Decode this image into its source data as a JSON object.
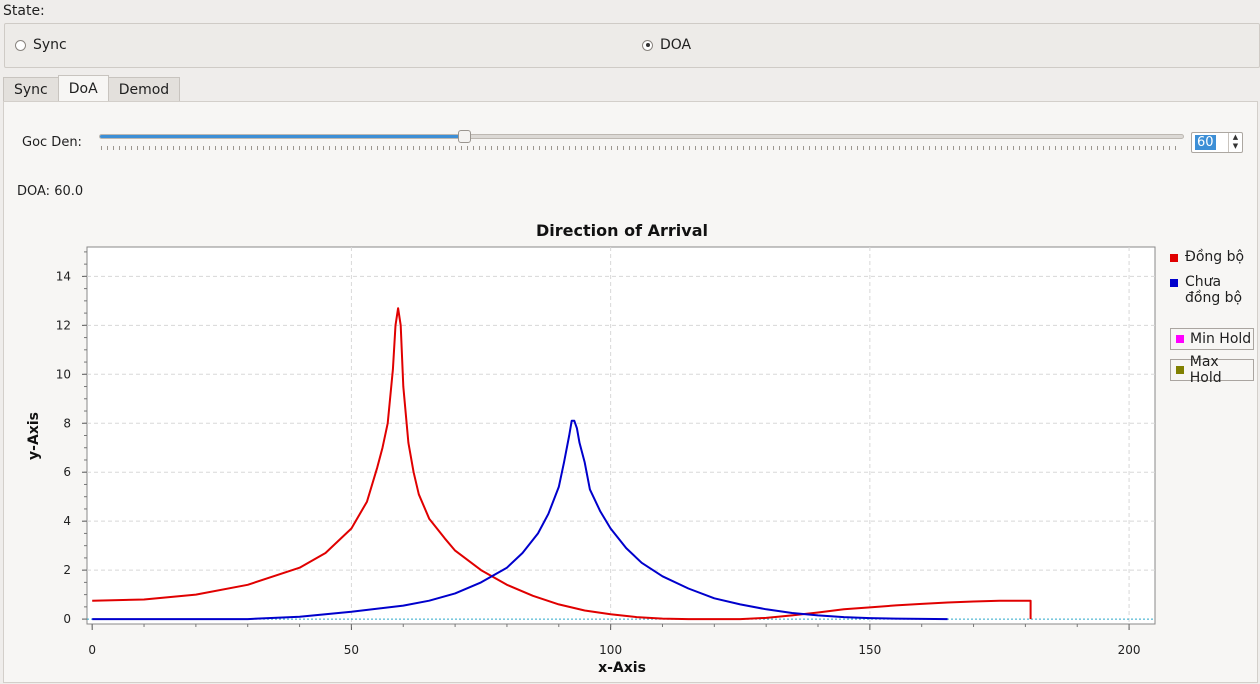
{
  "state": {
    "label": "State:",
    "options": [
      {
        "label": "Sync",
        "selected": false
      },
      {
        "label": "DOA",
        "selected": true
      }
    ]
  },
  "tabs": [
    "Sync",
    "DoA",
    "Demod"
  ],
  "active_tab": "DoA",
  "controls": {
    "goc_den_label": "Goc Den:",
    "slider_value": 60,
    "slider_range": [
      0,
      180
    ],
    "spin_value": "60",
    "doa_label": "DOA:",
    "doa_value": "60.0"
  },
  "colors": {
    "accent": "#3d8fd6",
    "series_red": "#e00000",
    "series_blue": "#0000cc",
    "min_hold": "#ff00ff",
    "max_hold": "#808000"
  },
  "legend": {
    "dong_bo": "Đồng bộ",
    "chua_dong_bo_1": "Chưa",
    "chua_dong_bo_2": "đồng bộ",
    "min_hold": "Min Hold",
    "max_hold": "Max Hold"
  },
  "chart_data": {
    "type": "line",
    "title": "Direction of Arrival",
    "xlabel": "x-Axis",
    "ylabel": "y-Axis",
    "xlim": [
      -1,
      205
    ],
    "ylim": [
      -0.2,
      15.2
    ],
    "x_ticks": [
      0,
      50,
      100,
      150,
      200
    ],
    "y_ticks": [
      0,
      2,
      4,
      6,
      8,
      10,
      12,
      14
    ],
    "grid": true,
    "legend_position": "right",
    "series": [
      {
        "name": "Đồng bộ",
        "color": "#e00000",
        "x": [
          0,
          10,
          20,
          30,
          40,
          45,
          50,
          53,
          55,
          56,
          57,
          58,
          58.5,
          59,
          59.5,
          60,
          61,
          62,
          63,
          65,
          68,
          70,
          75,
          80,
          85,
          90,
          95,
          100,
          105,
          110,
          115,
          120,
          125,
          130,
          135,
          140,
          145,
          150,
          155,
          160,
          165,
          170,
          175,
          180,
          181,
          181
        ],
        "y": [
          0.75,
          0.8,
          1.0,
          1.4,
          2.1,
          2.7,
          3.7,
          4.8,
          6.2,
          7.0,
          8.0,
          10.2,
          12.0,
          12.7,
          12.0,
          9.5,
          7.2,
          6.0,
          5.1,
          4.1,
          3.3,
          2.8,
          2.0,
          1.4,
          0.95,
          0.6,
          0.35,
          0.2,
          0.08,
          0.02,
          0.0,
          0.0,
          0.0,
          0.05,
          0.15,
          0.27,
          0.4,
          0.48,
          0.56,
          0.62,
          0.68,
          0.72,
          0.75,
          0.75,
          0.75,
          0.0
        ]
      },
      {
        "name": "Chưa đồng bộ",
        "color": "#0000cc",
        "x": [
          0,
          30,
          40,
          50,
          60,
          65,
          70,
          75,
          80,
          83,
          86,
          88,
          90,
          91,
          92,
          92.5,
          93,
          93.5,
          94,
          95,
          96,
          98,
          100,
          103,
          106,
          110,
          115,
          120,
          125,
          130,
          135,
          140,
          145,
          150,
          155,
          160,
          165
        ],
        "y": [
          0.0,
          0.0,
          0.1,
          0.3,
          0.55,
          0.75,
          1.05,
          1.5,
          2.1,
          2.7,
          3.5,
          4.3,
          5.4,
          6.4,
          7.5,
          8.1,
          8.1,
          7.8,
          7.2,
          6.4,
          5.3,
          4.4,
          3.7,
          2.9,
          2.3,
          1.75,
          1.25,
          0.85,
          0.6,
          0.4,
          0.25,
          0.15,
          0.08,
          0.04,
          0.02,
          0.01,
          0.0
        ]
      }
    ]
  }
}
